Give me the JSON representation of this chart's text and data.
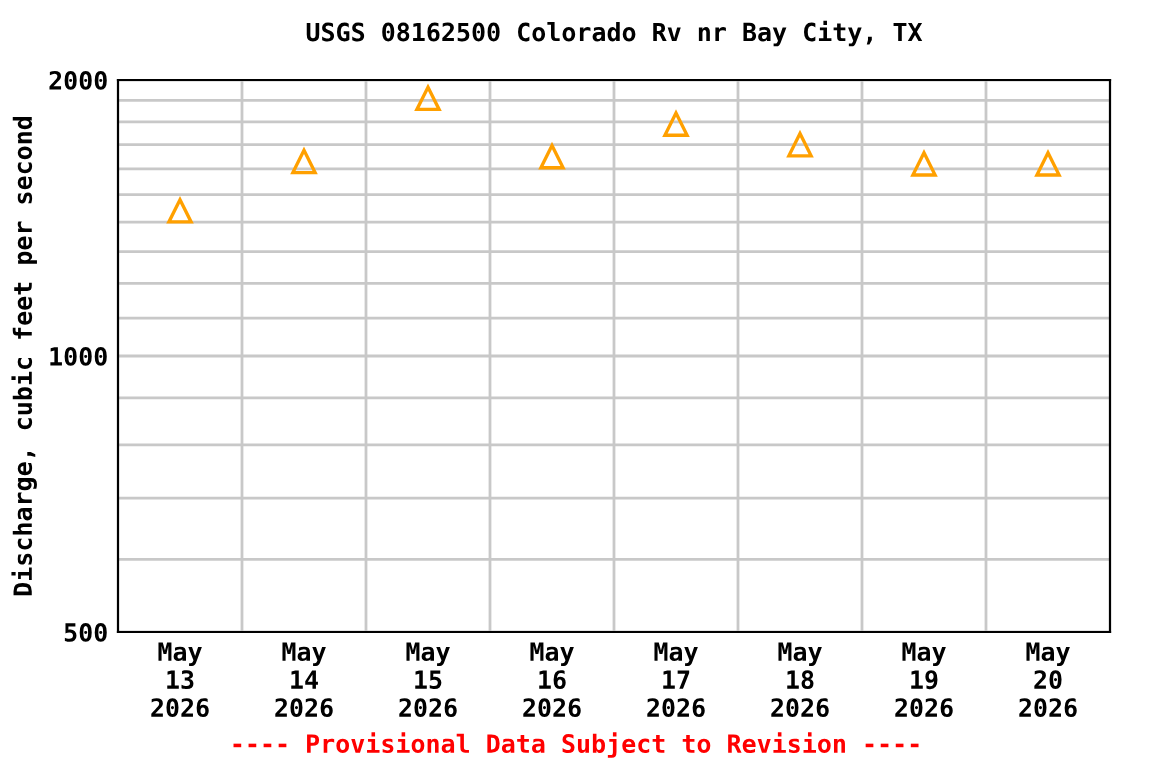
{
  "chart_data": {
    "type": "scatter",
    "title": "USGS 08162500 Colorado Rv nr Bay City, TX",
    "ylabel": "Discharge, cubic feet per second",
    "categories": [
      "May\n13\n2026",
      "May\n14\n2026",
      "May\n15\n2026",
      "May\n16\n2026",
      "May\n17\n2026",
      "May\n18\n2026",
      "May\n19\n2026",
      "May\n20\n2026"
    ],
    "series": [
      {
        "color": "#ffa000",
        "values": [
          1440,
          1630,
          1910,
          1650,
          1790,
          1700,
          1620,
          1620
        ]
      }
    ],
    "log": true,
    "ylim": [
      500,
      2000
    ],
    "yticks": [
      500,
      1000,
      2000
    ],
    "grid": true,
    "marker": "triangle",
    "annotations": [
      "---- Provisional Data Subject to Revision ----"
    ]
  }
}
